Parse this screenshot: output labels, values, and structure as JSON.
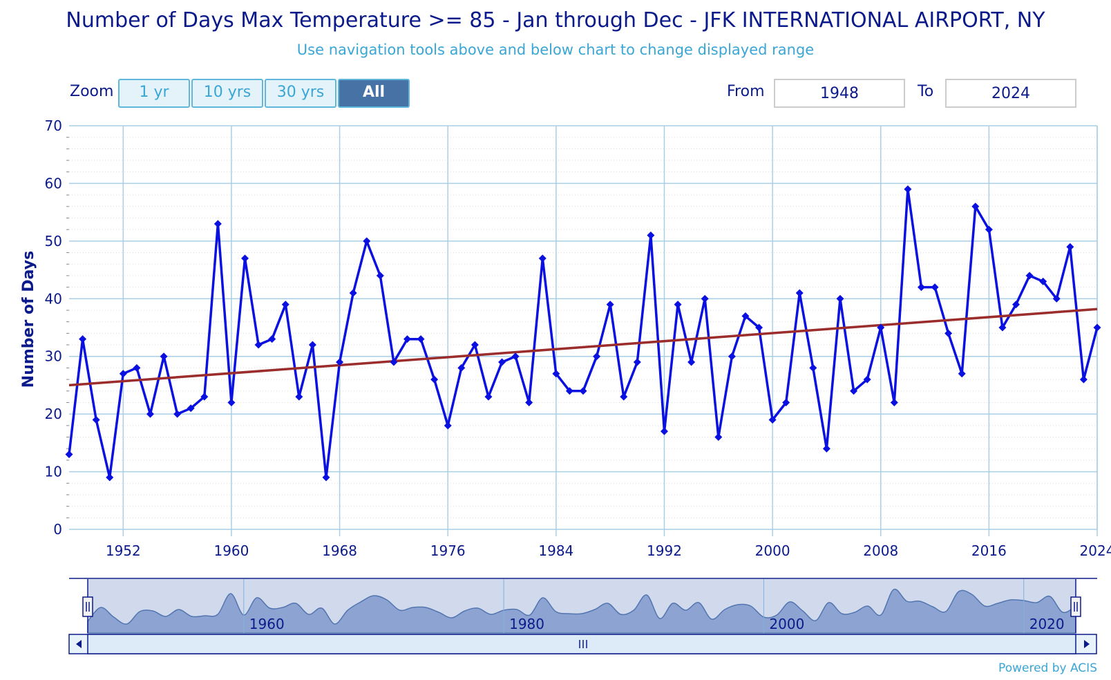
{
  "title": "Number of Days Max Temperature >= 85 - Jan through Dec - JFK INTERNATIONAL AIRPORT, NY",
  "subtitle": "Use navigation tools above and below chart to change displayed range",
  "zoom": {
    "label": "Zoom",
    "buttons": [
      "1 yr",
      "10 yrs",
      "30 yrs",
      "All"
    ],
    "active": "All"
  },
  "range": {
    "from_label": "From",
    "from_value": "1948",
    "to_label": "To",
    "to_value": "2024"
  },
  "powered_by": "Powered by ACIS",
  "colors": {
    "series": "#0a10e0",
    "trend": "#9b2d2d",
    "grid": "#a9cfe6",
    "navigator_fill": "#9eb2d8",
    "navigator_line": "#4a6fa8"
  },
  "chart_data": {
    "type": "line",
    "title": "Number of Days Max Temperature >= 85 - Jan through Dec - JFK INTERNATIONAL AIRPORT, NY",
    "xlabel": "",
    "ylabel": "Number of Days",
    "xlim": [
      1948,
      2024
    ],
    "ylim": [
      0,
      70
    ],
    "x_ticks": [
      1952,
      1960,
      1968,
      1976,
      1984,
      1992,
      2000,
      2008,
      2016,
      2024
    ],
    "y_ticks": [
      0,
      10,
      20,
      30,
      40,
      50,
      60,
      70
    ],
    "grid": true,
    "x": [
      1948,
      1949,
      1950,
      1951,
      1952,
      1953,
      1954,
      1955,
      1956,
      1957,
      1958,
      1959,
      1960,
      1961,
      1962,
      1963,
      1964,
      1965,
      1966,
      1967,
      1968,
      1969,
      1970,
      1971,
      1972,
      1973,
      1974,
      1975,
      1976,
      1977,
      1978,
      1979,
      1980,
      1981,
      1982,
      1983,
      1984,
      1985,
      1986,
      1987,
      1988,
      1989,
      1990,
      1991,
      1992,
      1993,
      1994,
      1995,
      1996,
      1997,
      1998,
      1999,
      2000,
      2001,
      2002,
      2003,
      2004,
      2005,
      2006,
      2007,
      2008,
      2009,
      2010,
      2011,
      2012,
      2013,
      2014,
      2015,
      2016,
      2017,
      2018,
      2019,
      2020,
      2021,
      2022,
      2023,
      2024
    ],
    "series": [
      {
        "values": [
          13,
          33,
          19,
          9,
          27,
          28,
          20,
          30,
          20,
          21,
          23,
          53,
          22,
          47,
          32,
          33,
          39,
          23,
          32,
          9,
          29,
          41,
          50,
          44,
          29,
          33,
          33,
          26,
          18,
          28,
          32,
          23,
          29,
          30,
          22,
          47,
          27,
          24,
          24,
          30,
          39,
          23,
          29,
          51,
          17,
          39,
          29,
          40,
          16,
          30,
          37,
          35,
          19,
          22,
          41,
          28,
          14,
          40,
          24,
          26,
          35,
          22,
          59,
          42,
          42,
          34,
          27,
          56,
          52,
          35,
          39,
          44,
          43,
          40,
          49,
          26,
          35
        ]
      }
    ],
    "trend": {
      "start": [
        1948,
        25.0
      ],
      "end": [
        2024,
        38.2
      ]
    },
    "navigator": {
      "x_ticks": [
        1960,
        1980,
        2000,
        2020
      ],
      "range": [
        1948,
        2024
      ]
    }
  }
}
